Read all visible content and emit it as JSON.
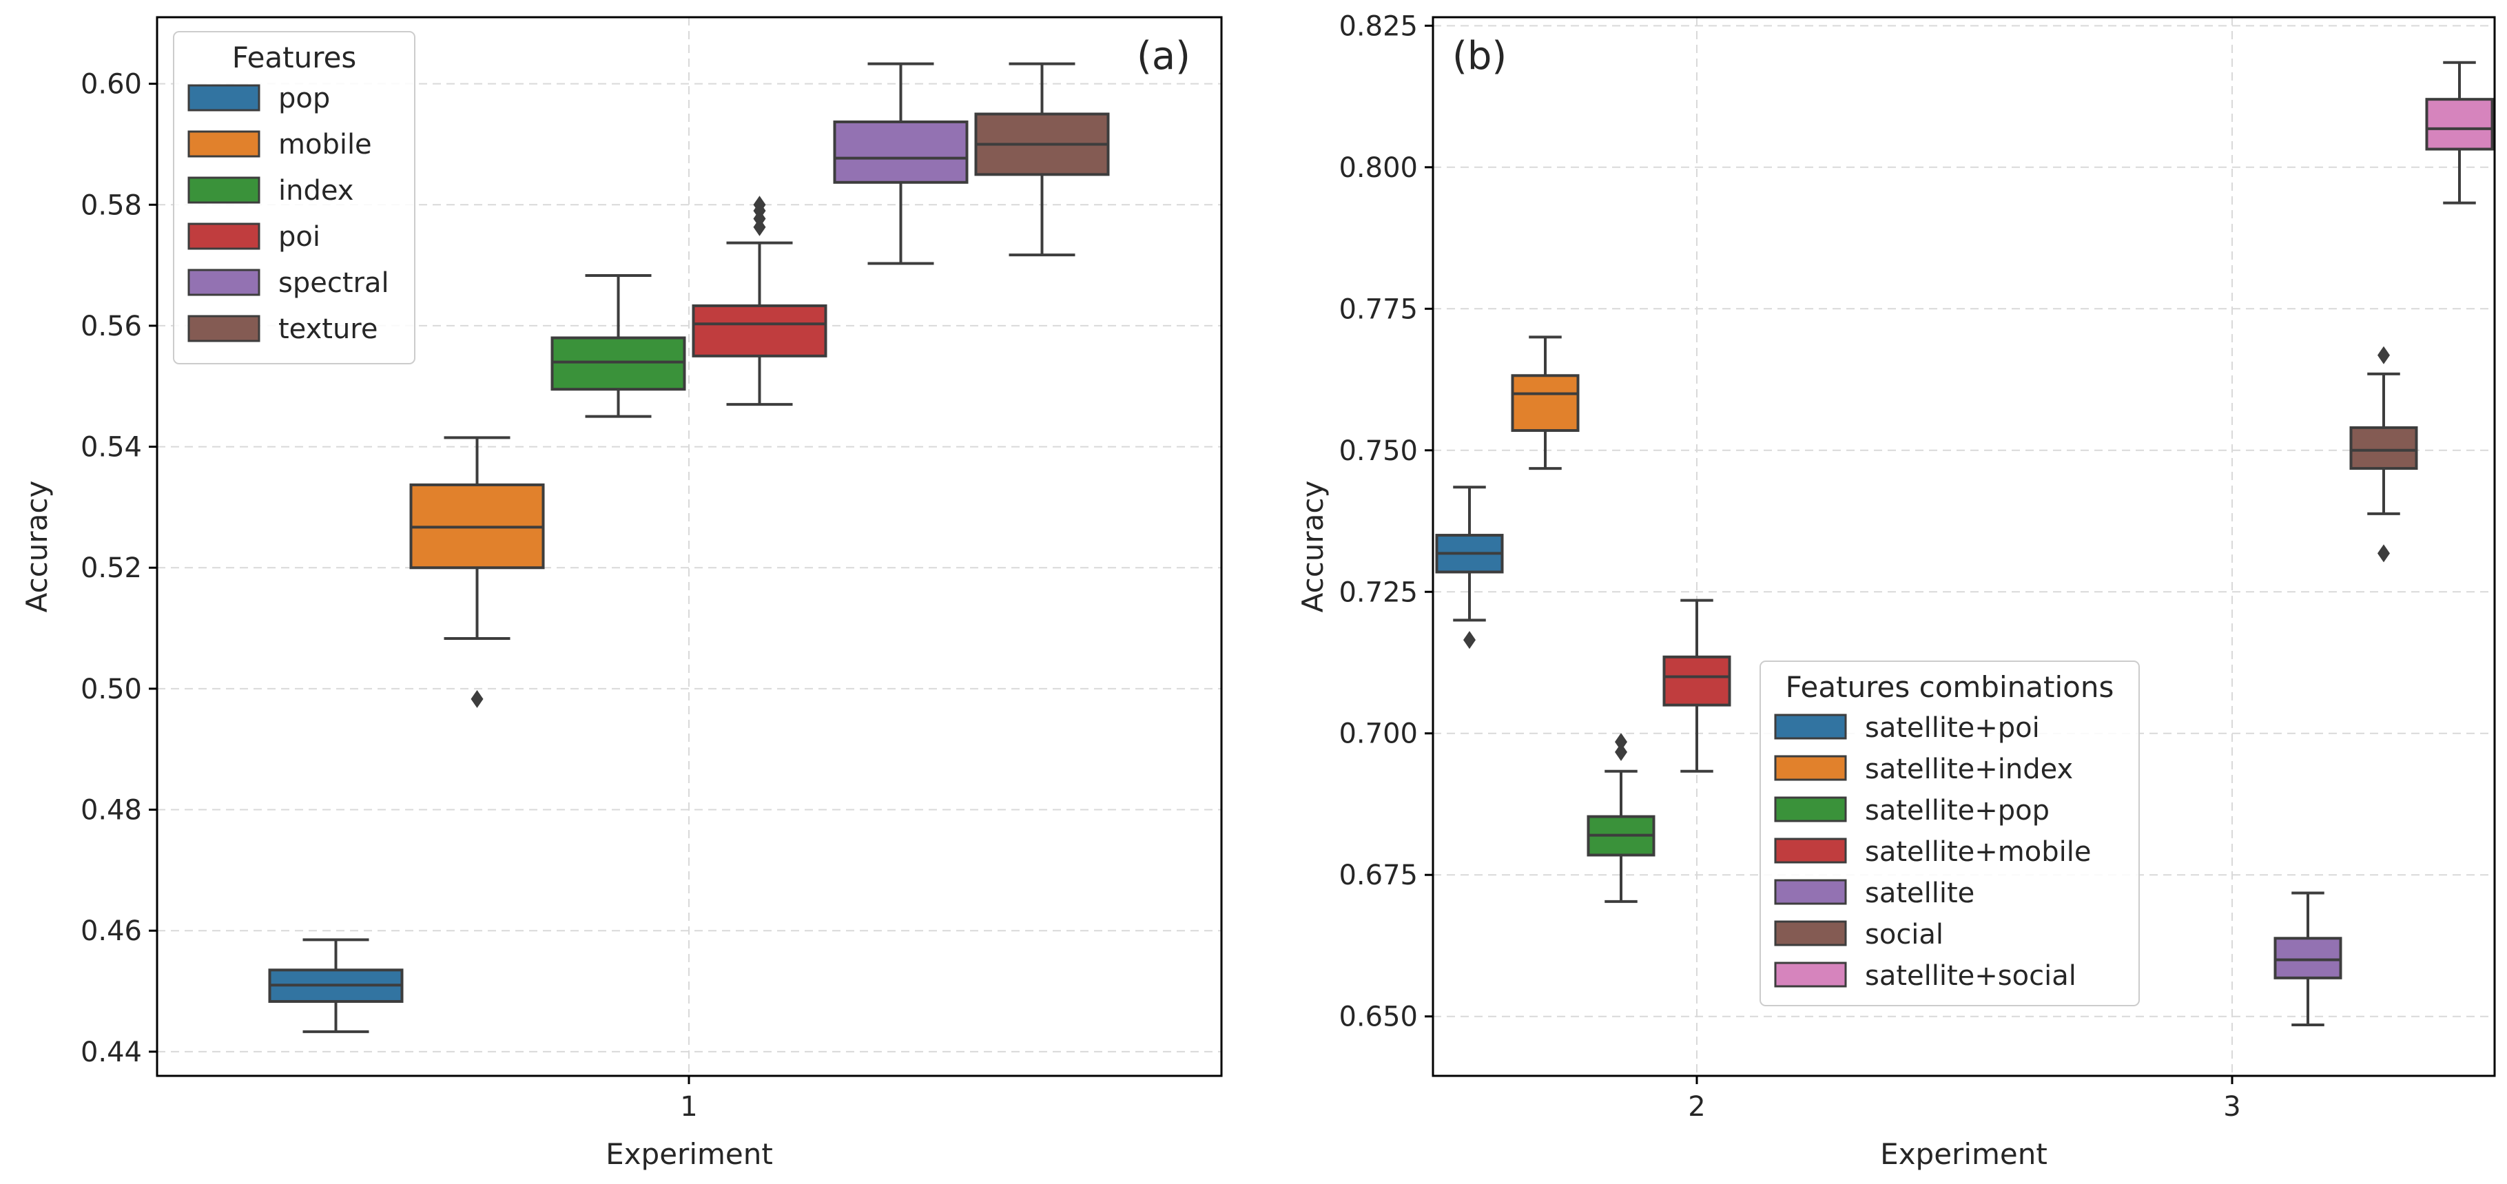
{
  "chart_data": [
    {
      "type": "box",
      "panel_label": "(a)",
      "xlabel": "Experiment",
      "ylabel": "Accuracy",
      "categories": [
        "1"
      ],
      "ylim": [
        0.436,
        0.611
      ],
      "yticks": [
        0.44,
        0.46,
        0.48,
        0.5,
        0.52,
        0.54,
        0.56,
        0.58,
        0.6
      ],
      "ytick_labels": [
        "0.44",
        "0.46",
        "0.48",
        "0.50",
        "0.52",
        "0.54",
        "0.56",
        "0.58",
        "0.60"
      ],
      "grid": true,
      "legend": {
        "title": "Features",
        "position": "top-left",
        "entries": [
          "pop",
          "mobile",
          "index",
          "poi",
          "spectral",
          "texture"
        ]
      },
      "series": [
        {
          "name": "pop",
          "color": "#3274a1",
          "category": "1",
          "whisker_low": 0.4433,
          "q1": 0.4483,
          "median": 0.451,
          "q3": 0.4535,
          "whisker_high": 0.4585,
          "outliers": []
        },
        {
          "name": "mobile",
          "color": "#e1812c",
          "category": "1",
          "whisker_low": 0.5083,
          "q1": 0.52,
          "median": 0.5267,
          "q3": 0.5337,
          "whisker_high": 0.5415,
          "outliers": [
            0.4983
          ]
        },
        {
          "name": "index",
          "color": "#3a923a",
          "category": "1",
          "whisker_low": 0.545,
          "q1": 0.5495,
          "median": 0.554,
          "q3": 0.558,
          "whisker_high": 0.5683,
          "outliers": []
        },
        {
          "name": "poi",
          "color": "#c03d3e",
          "category": "1",
          "whisker_low": 0.547,
          "q1": 0.555,
          "median": 0.5603,
          "q3": 0.5633,
          "whisker_high": 0.5737,
          "outliers": [
            0.5763,
            0.5777,
            0.579,
            0.58
          ]
        },
        {
          "name": "spectral",
          "color": "#9372b2",
          "category": "1",
          "whisker_low": 0.5703,
          "q1": 0.5837,
          "median": 0.5877,
          "q3": 0.5937,
          "whisker_high": 0.6033,
          "outliers": []
        },
        {
          "name": "texture",
          "color": "#845b53",
          "category": "1",
          "whisker_low": 0.5717,
          "q1": 0.585,
          "median": 0.59,
          "q3": 0.595,
          "whisker_high": 0.6033,
          "outliers": []
        }
      ]
    },
    {
      "type": "box",
      "panel_label": "(b)",
      "xlabel": "Experiment",
      "ylabel": "Accuracy",
      "categories": [
        "2",
        "3"
      ],
      "ylim": [
        0.6395,
        0.8265
      ],
      "yticks": [
        0.65,
        0.675,
        0.7,
        0.725,
        0.75,
        0.775,
        0.8,
        0.825
      ],
      "ytick_labels": [
        "0.650",
        "0.675",
        "0.700",
        "0.725",
        "0.750",
        "0.775",
        "0.800",
        "0.825"
      ],
      "grid": true,
      "legend": {
        "title": "Features combinations",
        "position": "lower-center",
        "entries": [
          "satellite+poi",
          "satellite+index",
          "satellite+pop",
          "satellite+mobile",
          "satellite",
          "social",
          "satellite+social"
        ]
      },
      "series": [
        {
          "name": "satellite+poi",
          "color": "#3274a1",
          "category": "2",
          "whisker_low": 0.72,
          "q1": 0.7285,
          "median": 0.7318,
          "q3": 0.735,
          "whisker_high": 0.7435,
          "outliers": [
            0.7165
          ]
        },
        {
          "name": "satellite+index",
          "color": "#e1812c",
          "category": "2",
          "whisker_low": 0.7468,
          "q1": 0.7535,
          "median": 0.76,
          "q3": 0.7632,
          "whisker_high": 0.77,
          "outliers": []
        },
        {
          "name": "satellite+pop",
          "color": "#3a923a",
          "category": "2",
          "whisker_low": 0.6703,
          "q1": 0.6785,
          "median": 0.682,
          "q3": 0.6853,
          "whisker_high": 0.6933,
          "outliers": [
            0.6967,
            0.6985
          ]
        },
        {
          "name": "satellite+mobile",
          "color": "#c03d3e",
          "category": "2",
          "whisker_low": 0.6933,
          "q1": 0.705,
          "median": 0.71,
          "q3": 0.7135,
          "whisker_high": 0.7235,
          "outliers": []
        },
        {
          "name": "satellite",
          "color": "#9372b2",
          "category": "3",
          "whisker_low": 0.6485,
          "q1": 0.6568,
          "median": 0.66,
          "q3": 0.6638,
          "whisker_high": 0.6718,
          "outliers": []
        },
        {
          "name": "social",
          "color": "#845b53",
          "category": "3",
          "whisker_low": 0.7388,
          "q1": 0.7468,
          "median": 0.75,
          "q3": 0.754,
          "whisker_high": 0.7635,
          "outliers": [
            0.7318,
            0.7668
          ]
        },
        {
          "name": "satellite+social",
          "color": "#d684bd",
          "category": "3",
          "whisker_low": 0.7937,
          "q1": 0.8032,
          "median": 0.8068,
          "q3": 0.812,
          "whisker_high": 0.8185,
          "outliers": []
        }
      ]
    }
  ]
}
